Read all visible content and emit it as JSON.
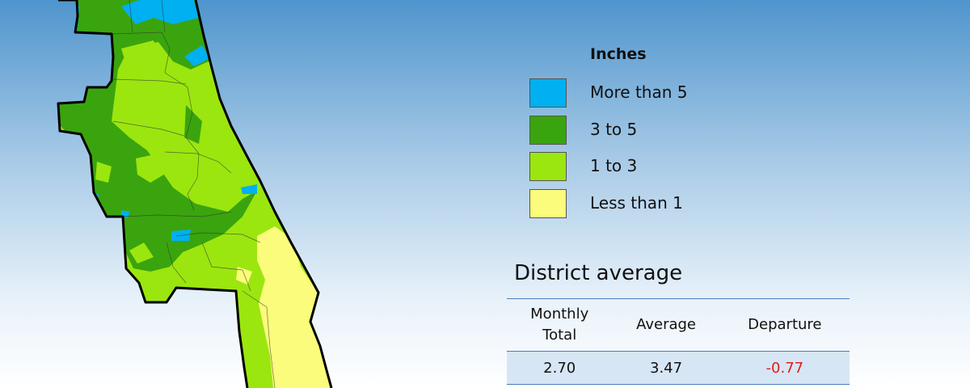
{
  "legend": {
    "title": "Inches",
    "items": [
      {
        "label": "More than 5",
        "color": "#00b0f0"
      },
      {
        "label": "3 to 5",
        "color": "#3aa40e"
      },
      {
        "label": "1 to 3",
        "color": "#9be60f"
      },
      {
        "label": "Less than 1",
        "color": "#fbfc7b"
      }
    ]
  },
  "district_average": {
    "title": "District average",
    "headers": {
      "monthly_total_line1": "Monthly",
      "monthly_total_line2": "Total",
      "average": "Average",
      "departure": "Departure"
    },
    "values": {
      "monthly_total": "2.70",
      "average": "3.47",
      "departure": "-0.77"
    },
    "departure_color": "#e31c1c"
  },
  "map": {
    "region_fill_colors": [
      "#00b0f0",
      "#3aa40e",
      "#9be60f",
      "#fbfc7b"
    ],
    "outline_color": "#000000"
  }
}
